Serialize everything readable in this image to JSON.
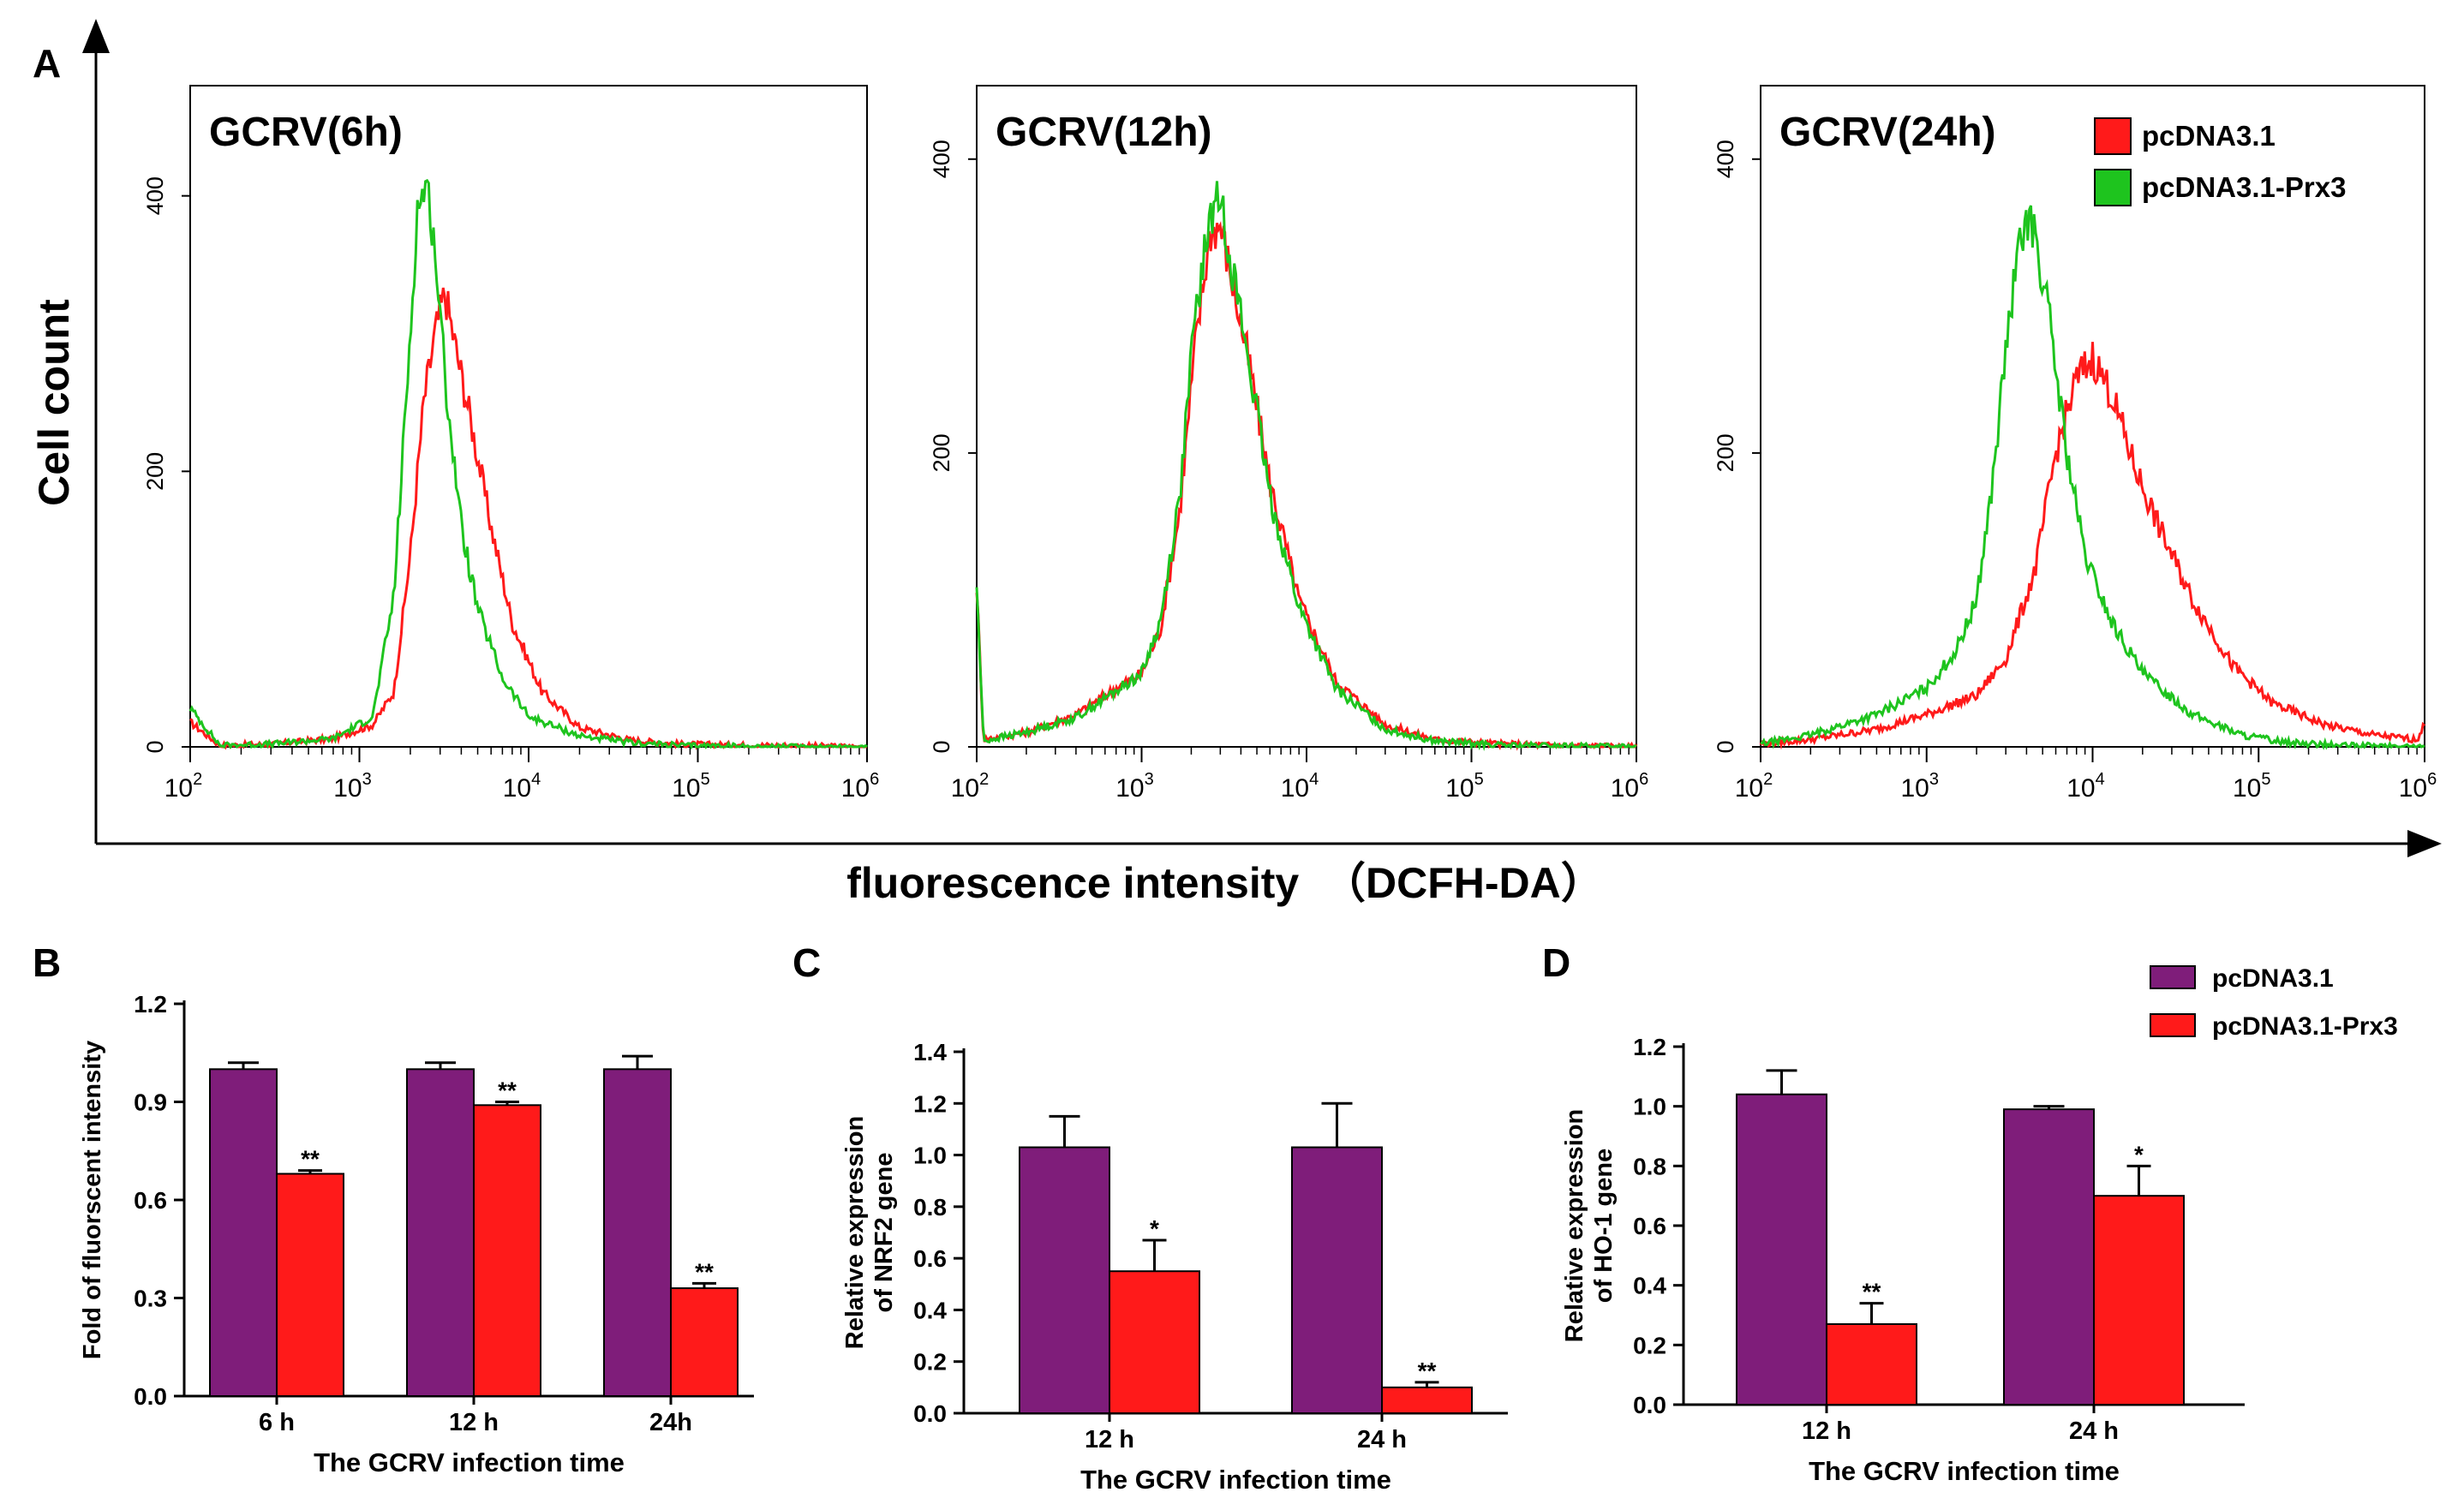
{
  "colors": {
    "red": "#ff1a1a",
    "green": "#1ec41e",
    "purple": "#7f1d7a",
    "black": "#000000"
  },
  "panel_labels": [
    "A",
    "B",
    "C",
    "D"
  ],
  "panelA": {
    "ylabel": "Cell count",
    "xlabel": "fluorescence intensity  （DCFH-DA）",
    "legend": [
      "pcDNA3.1",
      "pcDNA3.1-Prx3"
    ]
  },
  "chart_data": [
    {
      "id": "A1",
      "type": "line",
      "title": "GCRV(6h)",
      "xscale": "log10",
      "xlim": [
        100,
        1000000
      ],
      "ylim": [
        0,
        480
      ],
      "xticks": [
        {
          "base": "10",
          "exp": "2"
        },
        {
          "base": "10",
          "exp": "3"
        },
        {
          "base": "10",
          "exp": "4"
        },
        {
          "base": "10",
          "exp": "5"
        },
        {
          "base": "10",
          "exp": "6"
        }
      ],
      "yticks": [
        "0",
        "200",
        "400"
      ],
      "series": [
        {
          "name": "pcDNA3.1",
          "color": "red",
          "points": [
            [
              100,
              18
            ],
            [
              150,
              1
            ],
            [
              300,
              2
            ],
            [
              700,
              6
            ],
            [
              1200,
              16
            ],
            [
              1600,
              40
            ],
            [
              2000,
              140
            ],
            [
              2400,
              250
            ],
            [
              2800,
              300
            ],
            [
              3200,
              330
            ],
            [
              3700,
              290
            ],
            [
              4500,
              240
            ],
            [
              6000,
              160
            ],
            [
              8000,
              90
            ],
            [
              12000,
              40
            ],
            [
              20000,
              14
            ],
            [
              40000,
              5
            ],
            [
              80000,
              2
            ],
            [
              300000,
              1
            ],
            [
              1000000,
              0
            ]
          ]
        },
        {
          "name": "pcDNA3.1-Prx3",
          "color": "green",
          "points": [
            [
              100,
              28
            ],
            [
              150,
              1
            ],
            [
              300,
              2
            ],
            [
              700,
              6
            ],
            [
              1200,
              22
            ],
            [
              1600,
              110
            ],
            [
              2000,
              300
            ],
            [
              2200,
              390
            ],
            [
              2500,
              410
            ],
            [
              2800,
              360
            ],
            [
              3200,
              270
            ],
            [
              4000,
              160
            ],
            [
              5000,
              100
            ],
            [
              7000,
              50
            ],
            [
              10000,
              22
            ],
            [
              20000,
              8
            ],
            [
              40000,
              3
            ],
            [
              80000,
              1
            ],
            [
              300000,
              0
            ],
            [
              1000000,
              0
            ]
          ]
        }
      ]
    },
    {
      "id": "A2",
      "type": "line",
      "title": "GCRV(12h)",
      "xscale": "log10",
      "xlim": [
        100,
        1000000
      ],
      "ylim": [
        0,
        450
      ],
      "xticks": [
        {
          "base": "10",
          "exp": "2"
        },
        {
          "base": "10",
          "exp": "3"
        },
        {
          "base": "10",
          "exp": "4"
        },
        {
          "base": "10",
          "exp": "5"
        },
        {
          "base": "10",
          "exp": "6"
        }
      ],
      "yticks": [
        "0",
        "200",
        "400"
      ],
      "series": [
        {
          "name": "pcDNA3.1",
          "color": "red",
          "points": [
            [
              100,
              110
            ],
            [
              110,
              5
            ],
            [
              200,
              10
            ],
            [
              400,
              22
            ],
            [
              700,
              40
            ],
            [
              1000,
              50
            ],
            [
              1300,
              80
            ],
            [
              1700,
              160
            ],
            [
              2100,
              270
            ],
            [
              2600,
              350
            ],
            [
              3000,
              355
            ],
            [
              3500,
              320
            ],
            [
              4500,
              260
            ],
            [
              6000,
              180
            ],
            [
              9000,
              100
            ],
            [
              15000,
              45
            ],
            [
              30000,
              15
            ],
            [
              60000,
              5
            ],
            [
              150000,
              2
            ],
            [
              1000000,
              0
            ]
          ]
        },
        {
          "name": "pcDNA3.1-Prx3",
          "color": "green",
          "points": [
            [
              100,
              110
            ],
            [
              110,
              4
            ],
            [
              200,
              10
            ],
            [
              400,
              20
            ],
            [
              700,
              38
            ],
            [
              1000,
              50
            ],
            [
              1300,
              85
            ],
            [
              1700,
              170
            ],
            [
              2100,
              290
            ],
            [
              2600,
              360
            ],
            [
              3000,
              375
            ],
            [
              3500,
              330
            ],
            [
              4500,
              260
            ],
            [
              6000,
              170
            ],
            [
              9000,
              95
            ],
            [
              15000,
              40
            ],
            [
              30000,
              12
            ],
            [
              60000,
              4
            ],
            [
              150000,
              1
            ],
            [
              1000000,
              0
            ]
          ]
        }
      ]
    },
    {
      "id": "A3",
      "type": "line",
      "title": "GCRV(24h)",
      "xscale": "log10",
      "xlim": [
        100,
        1000000
      ],
      "ylim": [
        0,
        450
      ],
      "xticks": [
        {
          "base": "10",
          "exp": "2"
        },
        {
          "base": "10",
          "exp": "3"
        },
        {
          "base": "10",
          "exp": "4"
        },
        {
          "base": "10",
          "exp": "5"
        },
        {
          "base": "10",
          "exp": "6"
        }
      ],
      "yticks": [
        "0",
        "200",
        "400"
      ],
      "series": [
        {
          "name": "pcDNA3.1",
          "color": "red",
          "points": [
            [
              100,
              2
            ],
            [
              200,
              5
            ],
            [
              500,
              12
            ],
            [
              1000,
              22
            ],
            [
              2000,
              35
            ],
            [
              3000,
              60
            ],
            [
              4500,
              120
            ],
            [
              6000,
              200
            ],
            [
              8000,
              250
            ],
            [
              10000,
              265
            ],
            [
              13000,
              240
            ],
            [
              18000,
              190
            ],
            [
              25000,
              150
            ],
            [
              40000,
              100
            ],
            [
              70000,
              55
            ],
            [
              120000,
              30
            ],
            [
              250000,
              15
            ],
            [
              500000,
              8
            ],
            [
              900000,
              5
            ],
            [
              1000000,
              15
            ]
          ]
        },
        {
          "name": "pcDNA3.1-Prx3",
          "color": "green",
          "points": [
            [
              100,
              2
            ],
            [
              200,
              8
            ],
            [
              500,
              22
            ],
            [
              1000,
              40
            ],
            [
              1500,
              65
            ],
            [
              2000,
              100
            ],
            [
              2500,
              180
            ],
            [
              3000,
              270
            ],
            [
              3500,
              330
            ],
            [
              4000,
              360
            ],
            [
              4500,
              350
            ],
            [
              5500,
              290
            ],
            [
              7000,
              200
            ],
            [
              9000,
              130
            ],
            [
              13000,
              85
            ],
            [
              20000,
              50
            ],
            [
              40000,
              22
            ],
            [
              80000,
              8
            ],
            [
              150000,
              3
            ],
            [
              300000,
              1
            ],
            [
              1000000,
              0
            ]
          ]
        }
      ]
    },
    {
      "id": "B",
      "type": "bar",
      "ylabel": "Fold of fluorscent intensity",
      "xlabel": "The GCRV infection time",
      "categories": [
        "6 h",
        "12 h",
        "24h"
      ],
      "ylim": [
        0,
        1.2
      ],
      "yticks": [
        "0.0",
        "0.3",
        "0.6",
        "0.9",
        "1.2"
      ],
      "series": [
        {
          "name": "pcDNA3.1",
          "color": "purple",
          "values": [
            1.0,
            1.0,
            1.0
          ],
          "errors": [
            0.02,
            0.02,
            0.04
          ],
          "sig": [
            "",
            "",
            ""
          ]
        },
        {
          "name": "pcDNA3.1-Prx3",
          "color": "red",
          "values": [
            0.68,
            0.89,
            0.33
          ],
          "errors": [
            0.01,
            0.01,
            0.015
          ],
          "sig": [
            "**",
            "**",
            "**"
          ]
        }
      ]
    },
    {
      "id": "C",
      "type": "bar",
      "ylabel": "Relative expression of NRF2 gene",
      "ylabel_lines": [
        "Relative expression",
        "of NRF2 gene"
      ],
      "xlabel": "The GCRV infection time",
      "categories": [
        "12 h",
        "24 h"
      ],
      "ylim": [
        0,
        1.4
      ],
      "yticks": [
        "0.0",
        "0.2",
        "0.4",
        "0.6",
        "0.8",
        "1.0",
        "1.2",
        "1.4"
      ],
      "series": [
        {
          "name": "pcDNA3.1",
          "color": "purple",
          "values": [
            1.03,
            1.03
          ],
          "errors": [
            0.12,
            0.17
          ],
          "sig": [
            "",
            ""
          ]
        },
        {
          "name": "pcDNA3.1-Prx3",
          "color": "red",
          "values": [
            0.55,
            0.1
          ],
          "errors": [
            0.12,
            0.02
          ],
          "sig": [
            "*",
            "**"
          ]
        }
      ]
    },
    {
      "id": "D",
      "type": "bar",
      "ylabel": "Relative expression of HO-1 gene",
      "ylabel_lines": [
        "Relative expression",
        "of HO-1 gene"
      ],
      "xlabel": "The GCRV infection time",
      "categories": [
        "12 h",
        "24 h"
      ],
      "ylim": [
        0,
        1.2
      ],
      "yticks": [
        "0.0",
        "0.2",
        "0.4",
        "0.6",
        "0.8",
        "1.0",
        "1.2"
      ],
      "series": [
        {
          "name": "pcDNA3.1",
          "color": "purple",
          "values": [
            1.04,
            0.99
          ],
          "errors": [
            0.08,
            0.01
          ],
          "sig": [
            "",
            ""
          ]
        },
        {
          "name": "pcDNA3.1-Prx3",
          "color": "red",
          "values": [
            0.27,
            0.7
          ],
          "errors": [
            0.07,
            0.1
          ],
          "sig": [
            "**",
            "*"
          ]
        }
      ]
    }
  ],
  "bar_legend": [
    "pcDNA3.1",
    "pcDNA3.1-Prx3"
  ]
}
